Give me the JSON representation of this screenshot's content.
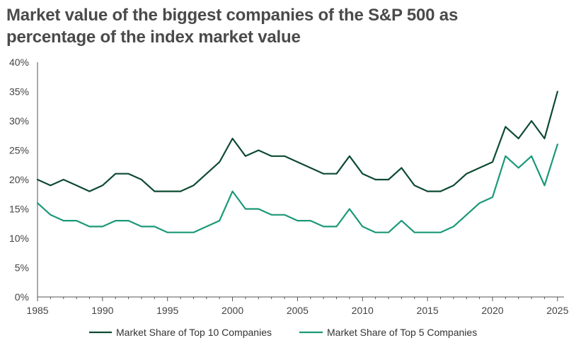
{
  "title": {
    "line1": "Market value of the biggest companies of the S&P 500 as",
    "line2": "percentage of the index market value"
  },
  "chart_data": {
    "type": "line",
    "title": "Market value of the biggest companies of the S&P 500 as percentage of the index market value",
    "xlabel": "",
    "ylabel": "",
    "xlim": [
      1985,
      2025.5
    ],
    "ylim": [
      0,
      40
    ],
    "x_ticks": [
      1985,
      1990,
      1995,
      2000,
      2005,
      2010,
      2015,
      2020,
      2025
    ],
    "y_ticks": [
      0,
      5,
      10,
      15,
      20,
      25,
      30,
      35,
      40
    ],
    "y_tick_labels": [
      "0%",
      "5%",
      "10%",
      "15%",
      "20%",
      "25%",
      "30%",
      "35%",
      "40%"
    ],
    "grid": false,
    "legend": "bottom",
    "x": [
      1985,
      1986,
      1987,
      1988,
      1989,
      1990,
      1991,
      1992,
      1993,
      1994,
      1995,
      1996,
      1997,
      1998,
      1999,
      2000,
      2001,
      2002,
      2003,
      2004,
      2005,
      2006,
      2007,
      2008,
      2009,
      2010,
      2011,
      2012,
      2013,
      2014,
      2015,
      2016,
      2017,
      2018,
      2019,
      2020,
      2021,
      2022,
      2023,
      2024,
      2025
    ],
    "series": [
      {
        "name": "Market Share of Top 10 Companies",
        "color": "#0d4a32",
        "values": [
          20,
          19,
          20,
          19,
          18,
          19,
          21,
          21,
          20,
          18,
          18,
          18,
          19,
          21,
          23,
          27,
          24,
          25,
          24,
          24,
          23,
          22,
          21,
          21,
          24,
          21,
          20,
          20,
          22,
          19,
          18,
          18,
          19,
          21,
          22,
          23,
          29,
          27,
          30,
          27,
          35
        ]
      },
      {
        "name": "Market Share of Top 5 Companies",
        "color": "#1a9878",
        "values": [
          16,
          14,
          13,
          13,
          12,
          12,
          13,
          13,
          12,
          12,
          11,
          11,
          11,
          12,
          13,
          18,
          15,
          15,
          14,
          14,
          13,
          13,
          12,
          12,
          15,
          12,
          11,
          11,
          13,
          11,
          11,
          11,
          12,
          14,
          16,
          17,
          24,
          22,
          24,
          19,
          26
        ]
      }
    ]
  }
}
